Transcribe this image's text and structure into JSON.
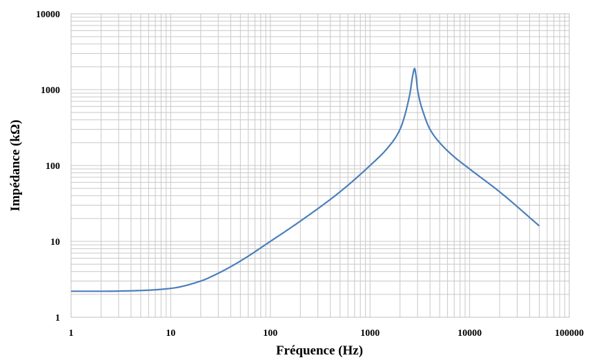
{
  "chart_data": {
    "type": "line",
    "title": "",
    "xlabel": "Fréquence (Hz)",
    "ylabel": "Impédance (kΩ)",
    "xscale": "log",
    "yscale": "log",
    "xlim": [
      1,
      100000
    ],
    "ylim": [
      1,
      10000
    ],
    "xticks": [
      "1",
      "10",
      "100",
      "1000",
      "10000",
      "100000"
    ],
    "yticks": [
      "1",
      "10",
      "100",
      "1000",
      "10000"
    ],
    "grid": true,
    "legend": "none",
    "series": [
      {
        "color": "#4a7ebb",
        "x": [
          1,
          2,
          5,
          10,
          20,
          30,
          50,
          100,
          200,
          500,
          1000,
          1500,
          2000,
          2500,
          2700,
          2800,
          2900,
          3000,
          3500,
          4000,
          5000,
          7000,
          10000,
          20000,
          50000
        ],
        "y": [
          2.2,
          2.2,
          2.25,
          2.4,
          3.0,
          3.8,
          5.5,
          10,
          18.5,
          45,
          100,
          170,
          300,
          850,
          1600,
          1900,
          1500,
          1000,
          460,
          300,
          200,
          130,
          90,
          45,
          16
        ]
      }
    ]
  }
}
